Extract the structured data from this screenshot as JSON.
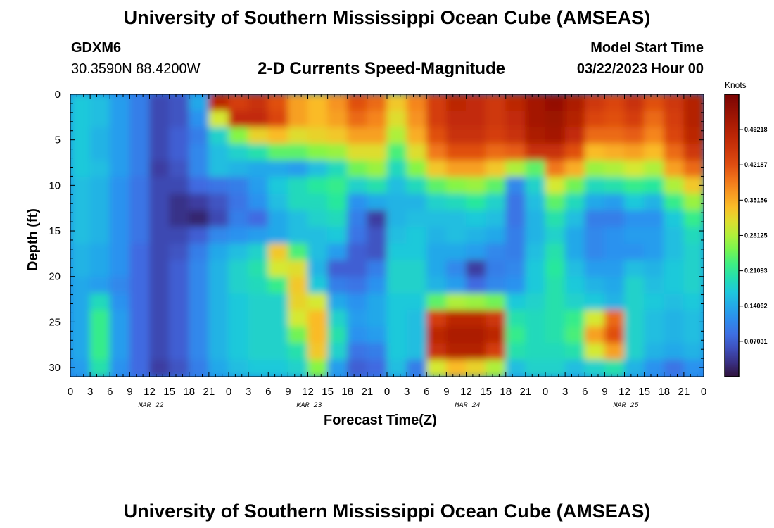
{
  "header": {
    "title": "University of Southern Mississippi Ocean Cube (AMSEAS)",
    "station": "GDXM6",
    "coords": "30.3590N  88.4200W",
    "model_start_label": "Model Start Time",
    "model_start_value": "03/22/2023 Hour 00",
    "subtitle": "2-D Currents Speed-Magnitude"
  },
  "footer": {
    "title": "University of Southern Mississippi Ocean Cube (AMSEAS)"
  },
  "chart_data": {
    "type": "heatmap",
    "title": "2-D Currents Speed-Magnitude",
    "xlabel": "Forecast Time(Z)",
    "ylabel": "Depth (ft)",
    "x_range_hours": [
      0,
      96
    ],
    "xticks": [
      "0",
      "3",
      "6",
      "9",
      "12",
      "15",
      "18",
      "21",
      "0",
      "3",
      "6",
      "9",
      "12",
      "15",
      "18",
      "21",
      "0",
      "3",
      "6",
      "9",
      "12",
      "15",
      "18",
      "21",
      "0",
      "3",
      "6",
      "9",
      "12",
      "15",
      "18",
      "21",
      "0"
    ],
    "day_labels": [
      "MAR 22",
      "MAR 23",
      "MAR 24",
      "MAR 25"
    ],
    "day_label_hours": [
      12,
      36,
      60,
      84
    ],
    "ylim": [
      0,
      31
    ],
    "yticks": [
      "0",
      "5",
      "10",
      "15",
      "20",
      "25",
      "30"
    ],
    "ytick_values": [
      0,
      5,
      10,
      15,
      20,
      25,
      30
    ],
    "colorbar": {
      "unit": "Knots",
      "range": [
        0,
        0.5624
      ],
      "ticks": [
        "0.49218",
        "0.42187",
        "0.35156",
        "0.28125",
        "0.21093",
        "0.14062",
        "0.07031"
      ],
      "tick_values": [
        0.49218,
        0.42187,
        0.35156,
        0.28125,
        0.21093,
        0.14062,
        0.07031
      ]
    },
    "value_grid": [
      [
        0.17,
        0.16,
        0.13,
        0.1,
        0.05,
        0.06,
        0.14,
        0.48,
        0.44,
        0.46,
        0.42,
        0.36,
        0.34,
        0.37,
        0.42,
        0.4,
        0.33,
        0.38,
        0.44,
        0.48,
        0.47,
        0.45,
        0.48,
        0.51,
        0.53,
        0.5,
        0.45,
        0.43,
        0.46,
        0.42,
        0.45,
        0.49
      ],
      [
        0.17,
        0.16,
        0.13,
        0.1,
        0.05,
        0.06,
        0.12,
        0.3,
        0.47,
        0.47,
        0.43,
        0.36,
        0.34,
        0.36,
        0.4,
        0.38,
        0.31,
        0.37,
        0.44,
        0.47,
        0.47,
        0.45,
        0.47,
        0.51,
        0.52,
        0.49,
        0.43,
        0.42,
        0.44,
        0.4,
        0.44,
        0.49
      ],
      [
        0.17,
        0.15,
        0.13,
        0.1,
        0.05,
        0.07,
        0.1,
        0.18,
        0.26,
        0.32,
        0.34,
        0.31,
        0.32,
        0.33,
        0.36,
        0.36,
        0.28,
        0.35,
        0.42,
        0.46,
        0.46,
        0.44,
        0.46,
        0.5,
        0.51,
        0.47,
        0.4,
        0.4,
        0.41,
        0.38,
        0.43,
        0.48
      ],
      [
        0.17,
        0.15,
        0.13,
        0.1,
        0.05,
        0.07,
        0.11,
        0.16,
        0.18,
        0.2,
        0.24,
        0.24,
        0.26,
        0.27,
        0.31,
        0.31,
        0.23,
        0.31,
        0.39,
        0.42,
        0.42,
        0.4,
        0.41,
        0.46,
        0.46,
        0.42,
        0.34,
        0.35,
        0.36,
        0.34,
        0.4,
        0.45
      ],
      [
        0.17,
        0.16,
        0.13,
        0.1,
        0.04,
        0.06,
        0.11,
        0.16,
        0.15,
        0.14,
        0.14,
        0.13,
        0.16,
        0.19,
        0.25,
        0.27,
        0.19,
        0.26,
        0.33,
        0.36,
        0.36,
        0.33,
        0.28,
        0.24,
        0.39,
        0.35,
        0.27,
        0.28,
        0.3,
        0.28,
        0.36,
        0.4
      ],
      [
        0.16,
        0.15,
        0.12,
        0.09,
        0.05,
        0.05,
        0.08,
        0.09,
        0.1,
        0.13,
        0.17,
        0.19,
        0.21,
        0.22,
        0.18,
        0.2,
        0.16,
        0.19,
        0.24,
        0.26,
        0.27,
        0.24,
        0.11,
        0.18,
        0.3,
        0.25,
        0.19,
        0.2,
        0.22,
        0.21,
        0.28,
        0.33
      ],
      [
        0.16,
        0.15,
        0.12,
        0.09,
        0.05,
        0.03,
        0.04,
        0.06,
        0.09,
        0.12,
        0.16,
        0.19,
        0.19,
        0.21,
        0.12,
        0.14,
        0.15,
        0.15,
        0.18,
        0.19,
        0.21,
        0.18,
        0.09,
        0.16,
        0.24,
        0.19,
        0.14,
        0.13,
        0.17,
        0.15,
        0.22,
        0.27
      ],
      [
        0.16,
        0.15,
        0.12,
        0.09,
        0.05,
        0.03,
        0.02,
        0.05,
        0.1,
        0.08,
        0.14,
        0.16,
        0.18,
        0.19,
        0.1,
        0.04,
        0.15,
        0.16,
        0.16,
        0.16,
        0.17,
        0.16,
        0.09,
        0.15,
        0.2,
        0.16,
        0.1,
        0.1,
        0.12,
        0.12,
        0.17,
        0.22
      ],
      [
        0.16,
        0.15,
        0.12,
        0.09,
        0.05,
        0.05,
        0.07,
        0.11,
        0.12,
        0.13,
        0.14,
        0.16,
        0.16,
        0.17,
        0.09,
        0.06,
        0.16,
        0.17,
        0.15,
        0.16,
        0.15,
        0.14,
        0.1,
        0.15,
        0.18,
        0.14,
        0.11,
        0.12,
        0.13,
        0.13,
        0.16,
        0.19
      ],
      [
        0.15,
        0.14,
        0.12,
        0.08,
        0.05,
        0.06,
        0.1,
        0.14,
        0.16,
        0.18,
        0.33,
        0.23,
        0.16,
        0.13,
        0.07,
        0.06,
        0.17,
        0.17,
        0.14,
        0.14,
        0.13,
        0.11,
        0.1,
        0.16,
        0.2,
        0.14,
        0.11,
        0.12,
        0.12,
        0.13,
        0.16,
        0.18
      ],
      [
        0.15,
        0.14,
        0.12,
        0.08,
        0.05,
        0.07,
        0.11,
        0.15,
        0.18,
        0.2,
        0.3,
        0.31,
        0.15,
        0.07,
        0.07,
        0.1,
        0.18,
        0.18,
        0.14,
        0.11,
        0.04,
        0.1,
        0.11,
        0.17,
        0.21,
        0.16,
        0.13,
        0.13,
        0.16,
        0.15,
        0.17,
        0.18
      ],
      [
        0.14,
        0.13,
        0.11,
        0.08,
        0.05,
        0.07,
        0.11,
        0.15,
        0.18,
        0.19,
        0.22,
        0.33,
        0.17,
        0.1,
        0.09,
        0.12,
        0.18,
        0.18,
        0.15,
        0.13,
        0.08,
        0.11,
        0.12,
        0.17,
        0.2,
        0.17,
        0.15,
        0.14,
        0.18,
        0.16,
        0.17,
        0.18
      ],
      [
        0.14,
        0.19,
        0.12,
        0.08,
        0.05,
        0.07,
        0.11,
        0.15,
        0.17,
        0.18,
        0.18,
        0.32,
        0.3,
        0.14,
        0.12,
        0.14,
        0.17,
        0.17,
        0.24,
        0.28,
        0.27,
        0.25,
        0.17,
        0.18,
        0.2,
        0.18,
        0.17,
        0.15,
        0.18,
        0.17,
        0.16,
        0.17
      ],
      [
        0.14,
        0.22,
        0.13,
        0.08,
        0.05,
        0.07,
        0.11,
        0.15,
        0.17,
        0.18,
        0.18,
        0.3,
        0.34,
        0.18,
        0.13,
        0.14,
        0.17,
        0.16,
        0.44,
        0.48,
        0.48,
        0.45,
        0.2,
        0.19,
        0.2,
        0.22,
        0.3,
        0.4,
        0.18,
        0.16,
        0.15,
        0.16
      ],
      [
        0.14,
        0.22,
        0.13,
        0.08,
        0.05,
        0.07,
        0.11,
        0.15,
        0.17,
        0.18,
        0.18,
        0.25,
        0.34,
        0.2,
        0.12,
        0.13,
        0.17,
        0.16,
        0.48,
        0.5,
        0.5,
        0.48,
        0.22,
        0.19,
        0.2,
        0.23,
        0.36,
        0.42,
        0.18,
        0.16,
        0.15,
        0.16
      ],
      [
        0.14,
        0.22,
        0.13,
        0.08,
        0.05,
        0.07,
        0.11,
        0.15,
        0.17,
        0.18,
        0.18,
        0.2,
        0.33,
        0.18,
        0.09,
        0.1,
        0.17,
        0.16,
        0.46,
        0.49,
        0.49,
        0.44,
        0.2,
        0.19,
        0.19,
        0.2,
        0.3,
        0.36,
        0.18,
        0.15,
        0.14,
        0.15
      ],
      [
        0.13,
        0.2,
        0.12,
        0.08,
        0.04,
        0.06,
        0.1,
        0.14,
        0.16,
        0.17,
        0.17,
        0.18,
        0.26,
        0.13,
        0.07,
        0.08,
        0.16,
        0.1,
        0.3,
        0.34,
        0.32,
        0.28,
        0.16,
        0.18,
        0.18,
        0.16,
        0.18,
        0.2,
        0.15,
        0.12,
        0.09,
        0.12
      ]
    ]
  }
}
